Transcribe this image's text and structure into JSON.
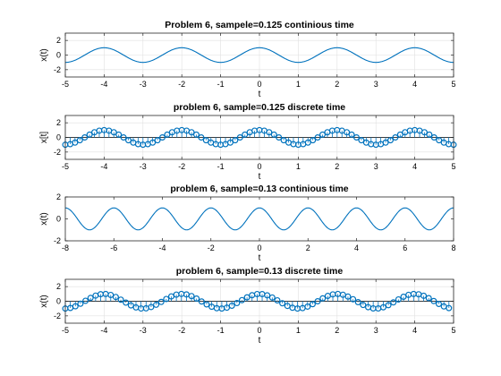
{
  "chart_data": [
    {
      "type": "line",
      "title": "Problem 6, sampele=0.125 continious time",
      "xlabel": "t",
      "ylabel": "x(t)",
      "xlim": [
        -5,
        5
      ],
      "ylim": [
        -3,
        3
      ],
      "xticks": [
        "-5",
        "-4",
        "-3",
        "-2",
        "-1",
        "0",
        "1",
        "2",
        "3",
        "4",
        "5"
      ],
      "yticks": [
        "2",
        "0",
        "-2"
      ],
      "grid": true,
      "series": [
        {
          "function": "cos(pi*t)",
          "x_range": [
            -5,
            5
          ],
          "step": 0.02
        }
      ]
    },
    {
      "type": "stem",
      "title": "problem 6, sample=0.125 discrete time",
      "xlabel": "t",
      "ylabel": "x[t]",
      "xlim": [
        -5,
        5
      ],
      "ylim": [
        -3,
        3
      ],
      "xticks": [
        "-5",
        "-4",
        "-3",
        "-2",
        "-1",
        "0",
        "1",
        "2",
        "3",
        "4",
        "5"
      ],
      "yticks": [
        "2",
        "0",
        "-2"
      ],
      "grid": true,
      "series": [
        {
          "function": "cos(pi*t)",
          "x_range": [
            -5,
            5
          ],
          "step": 0.125
        }
      ]
    },
    {
      "type": "line",
      "title": "problem 6, sample=0.13 continious time",
      "xlabel": "t",
      "ylabel": "x(t)",
      "xlim": [
        -8,
        8
      ],
      "ylim": [
        -2,
        2
      ],
      "xticks": [
        "-8",
        "-6",
        "-4",
        "-2",
        "0",
        "2",
        "4",
        "6",
        "8"
      ],
      "yticks": [
        "2",
        "0",
        "-2"
      ],
      "grid": false,
      "series": [
        {
          "function": "cos(pi*t)",
          "x_range": [
            -8,
            8
          ],
          "step": 0.02
        }
      ]
    },
    {
      "type": "stem",
      "title": "problem 6, sample=0.13 discrete time",
      "xlabel": "t",
      "ylabel": "x(t)",
      "xlim": [
        -5,
        5
      ],
      "ylim": [
        -3,
        3
      ],
      "xticks": [
        "-5",
        "-4",
        "-3",
        "-2",
        "-1",
        "0",
        "1",
        "2",
        "3",
        "4",
        "5"
      ],
      "yticks": [
        "2",
        "0",
        "-2"
      ],
      "grid": true,
      "series": [
        {
          "function": "cos(pi*t)",
          "x_range": [
            -5,
            5
          ],
          "step": 0.13
        }
      ]
    }
  ],
  "colors": {
    "series": "#0072BD",
    "grid": "#e0e0e0",
    "axes": "#262626"
  }
}
